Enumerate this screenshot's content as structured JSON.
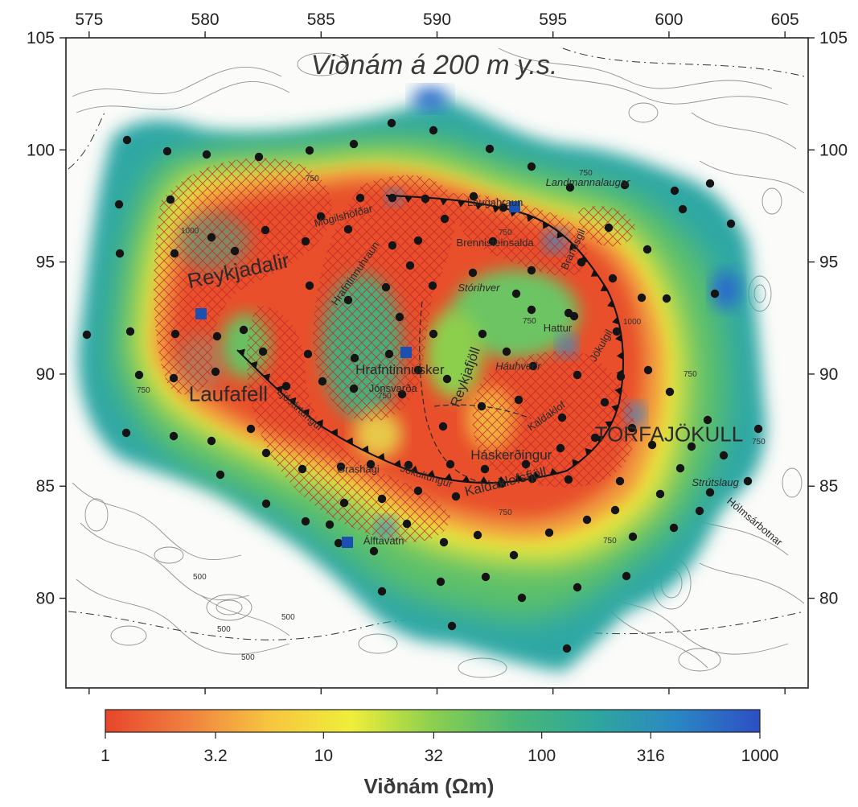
{
  "map": {
    "title": "Viðnám á 200 m y.s.",
    "x_ticks": [
      "575",
      "580",
      "585",
      "590",
      "595",
      "600",
      "605"
    ],
    "y_ticks": [
      "105",
      "100",
      "95",
      "90",
      "85",
      "80"
    ],
    "x_tick_values": [
      575,
      580,
      585,
      590,
      595,
      600,
      605
    ],
    "y_tick_values": [
      105,
      100,
      95,
      90,
      85,
      80
    ],
    "x_range": [
      574,
      606
    ],
    "y_range": [
      76,
      105
    ],
    "place_names": [
      {
        "text": "Reykjadalir",
        "x": 581.5,
        "y": 94.3,
        "size": "large",
        "rotate": -12
      },
      {
        "text": "Laufafell",
        "x": 581.0,
        "y": 88.8,
        "size": "large",
        "rotate": 0
      },
      {
        "text": "TORFAJÖKULL",
        "x": 600.0,
        "y": 87.0,
        "size": "large",
        "rotate": 0
      },
      {
        "text": "Mógilshöfðar",
        "x": 586.0,
        "y": 96.9,
        "size": "small",
        "rotate": -15
      },
      {
        "text": "Hrafntinnuhraun",
        "x": 586.6,
        "y": 94.4,
        "size": "small",
        "rotate": -55
      },
      {
        "text": "Laugahraun",
        "x": 592.5,
        "y": 97.5,
        "size": "small",
        "rotate": 0
      },
      {
        "text": "Brennisteinsalda",
        "x": 592.5,
        "y": 95.7,
        "size": "small",
        "rotate": 0
      },
      {
        "text": "Landmannalaugar",
        "x": 596.5,
        "y": 98.4,
        "size": "small",
        "rotate": 0
      },
      {
        "text": "Brandsgil",
        "x": 596.0,
        "y": 95.5,
        "size": "small",
        "rotate": -65
      },
      {
        "text": "Stórihver",
        "x": 591.8,
        "y": 93.7,
        "size": "small",
        "rotate": 0
      },
      {
        "text": "Hattur",
        "x": 595.2,
        "y": 91.9,
        "size": "small",
        "rotate": 0
      },
      {
        "text": "Jökulgil",
        "x": 597.2,
        "y": 91.2,
        "size": "small",
        "rotate": -60
      },
      {
        "text": "Hrafntinnusker",
        "x": 588.4,
        "y": 90.0,
        "size": "medium",
        "rotate": 0
      },
      {
        "text": "Jónsvarða",
        "x": 588.1,
        "y": 89.2,
        "size": "small",
        "rotate": 0
      },
      {
        "text": "Reykjafjöll",
        "x": 591.4,
        "y": 89.8,
        "size": "medium",
        "rotate": -70
      },
      {
        "text": "Háuhverir",
        "x": 593.5,
        "y": 90.2,
        "size": "small",
        "rotate": 0
      },
      {
        "text": "Kaldaklof",
        "x": 594.8,
        "y": 88.0,
        "size": "small",
        "rotate": -35
      },
      {
        "text": "Ljósártungur",
        "x": 584.0,
        "y": 88.3,
        "size": "small",
        "rotate": 42
      },
      {
        "text": "Háskerðingur",
        "x": 593.2,
        "y": 86.2,
        "size": "medium",
        "rotate": 0
      },
      {
        "text": "Jökultungur",
        "x": 589.5,
        "y": 85.3,
        "size": "small",
        "rotate": 18
      },
      {
        "text": "Kaldaklofsfjöll",
        "x": 593.0,
        "y": 85.0,
        "size": "medium",
        "rotate": -14
      },
      {
        "text": "Grashagi",
        "x": 586.6,
        "y": 85.6,
        "size": "small",
        "rotate": 0
      },
      {
        "text": "Álftavatn",
        "x": 587.7,
        "y": 82.4,
        "size": "small",
        "rotate": 0
      },
      {
        "text": "Strútslaug",
        "x": 602.0,
        "y": 85.0,
        "size": "small",
        "rotate": 0
      },
      {
        "text": "Hólmsárbotnar",
        "x": 603.6,
        "y": 83.3,
        "size": "small",
        "rotate": 40
      }
    ],
    "contour_labels": [
      "750",
      "750",
      "750",
      "750",
      "750",
      "750",
      "750",
      "750",
      "750",
      "750",
      "1000",
      "1000",
      "500",
      "500",
      "500",
      "500"
    ],
    "colors": {
      "low": "#e8502b",
      "mid_low": "#f3a24c",
      "mid": "#f2e83a",
      "mid_high": "#5bbf6d",
      "high": "#2fa7a5",
      "max": "#2a55c9",
      "hatch": "#c0262a"
    }
  },
  "colorbar": {
    "labels": [
      "1",
      "3.2",
      "10",
      "32",
      "100",
      "316",
      "1000"
    ],
    "values": [
      1,
      3.2,
      10,
      32,
      100,
      316,
      1000
    ],
    "title": "Viðnám (Ωm)",
    "stops": [
      "#e8452a",
      "#f08040",
      "#f7c540",
      "#efee3a",
      "#8ccf4e",
      "#4ab777",
      "#2ea79d",
      "#2b86c4",
      "#2c4fc4"
    ]
  }
}
